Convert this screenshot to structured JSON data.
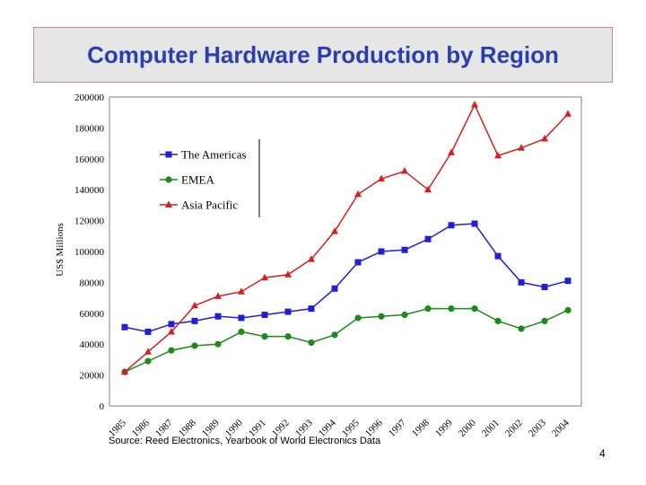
{
  "slide": {
    "title": "Computer Hardware Production by Region",
    "source": "Source: Reed Electronics, Yearbook of World Electronics Data",
    "page_number": "4"
  },
  "chart_data": {
    "type": "line",
    "title": "",
    "xlabel": "",
    "ylabel": "US$ Millions",
    "ylim": [
      0,
      200000
    ],
    "yticks": [
      0,
      20000,
      40000,
      60000,
      80000,
      100000,
      120000,
      140000,
      160000,
      180000,
      200000
    ],
    "x": [
      "1985",
      "1986",
      "1987",
      "1988",
      "1989",
      "1990",
      "1991",
      "1992",
      "1993",
      "1994",
      "1995",
      "1996",
      "1997",
      "1998",
      "1999",
      "2000",
      "2001",
      "2002",
      "2003",
      "2004"
    ],
    "grid": false,
    "legend": "top-left",
    "series": [
      {
        "name": "The Americas",
        "color": "#1f1fd6",
        "marker": "square",
        "values": [
          51000,
          48000,
          53000,
          55000,
          58000,
          57000,
          59000,
          61000,
          63000,
          76000,
          93000,
          100000,
          101000,
          108000,
          117000,
          118000,
          97000,
          80000,
          77000,
          81000
        ]
      },
      {
        "name": "EMEA",
        "color": "#1a8a1a",
        "marker": "circle",
        "values": [
          22000,
          29000,
          36000,
          39000,
          40000,
          48000,
          45000,
          45000,
          41000,
          46000,
          57000,
          58000,
          59000,
          63000,
          63000,
          63000,
          55000,
          50000,
          55000,
          62000
        ]
      },
      {
        "name": "Asia Pacific",
        "color": "#d61f1f",
        "marker": "triangle",
        "values": [
          22000,
          35000,
          48000,
          65000,
          71000,
          74000,
          83000,
          85000,
          95000,
          113000,
          137000,
          147000,
          152000,
          140000,
          164000,
          195000,
          162000,
          167000,
          173000,
          189000
        ]
      }
    ]
  }
}
